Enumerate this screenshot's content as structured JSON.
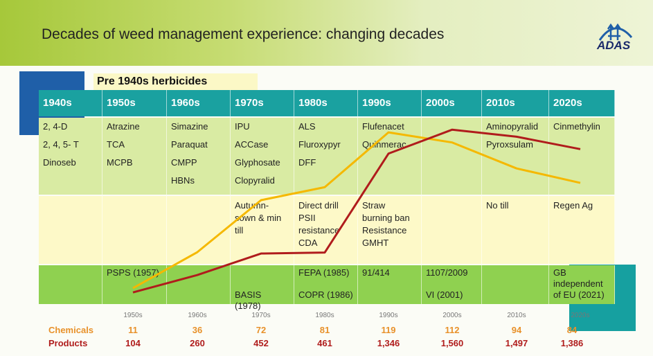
{
  "title": "Decades of weed management experience: changing decades",
  "logo": "ADAS",
  "pre_box": "Pre 1940s herbicides",
  "table": {
    "headers": [
      "1940s",
      "1950s",
      "1960s",
      "1970s",
      "1980s",
      "1990s",
      "2000s",
      "2010s",
      "2020s"
    ],
    "herbicides": [
      [
        "2, 4-D",
        "2, 4, 5- T",
        "Dinoseb"
      ],
      [
        "Atrazine",
        "TCA",
        "MCPB"
      ],
      [
        "Simazine",
        "Paraquat",
        "CMPP",
        "HBNs"
      ],
      [
        "IPU",
        "ACCase",
        "Glyphosate",
        "Clopyralid"
      ],
      [
        "ALS",
        "Fluroxypyr",
        "DFF"
      ],
      [
        "Flufenacet",
        "Quinmerac"
      ],
      [],
      [
        "Aminopyralid",
        "Pyroxsulam"
      ],
      [
        "Cinmethylin"
      ]
    ],
    "practices": [
      [],
      [],
      [],
      [
        "Autumn-sown & min till"
      ],
      [
        "Direct drill",
        "PSII resistance",
        "CDA"
      ],
      [
        "Straw burning ban",
        "Resistance",
        "GMHT"
      ],
      [],
      [
        "No till"
      ],
      [
        "Regen Ag"
      ]
    ],
    "regulation": [
      [],
      [
        "PSPS (1957)"
      ],
      [],
      [
        "",
        "",
        "BASIS (1978)"
      ],
      [
        "FEPA (1985)",
        "",
        "COPR (1986)"
      ],
      [
        "91/414"
      ],
      [
        "1107/2009",
        "",
        "VI (2001)"
      ],
      [],
      [
        "GB independent of EU (2021)"
      ]
    ]
  },
  "chart_data": {
    "type": "line",
    "categories": [
      "1950s",
      "1960s",
      "1970s",
      "1980s",
      "1990s",
      "2000s",
      "2010s",
      "2020s"
    ],
    "series": [
      {
        "name": "Chemicals",
        "color": "#f5b800",
        "label_color": "#e8912a",
        "values": [
          11,
          36,
          72,
          81,
          119,
          112,
          94,
          84
        ]
      },
      {
        "name": "Products",
        "color": "#b01c1c",
        "label_color": "#b01c1c",
        "values": [
          104,
          260,
          452,
          461,
          1346,
          1560,
          1497,
          1386
        ]
      }
    ],
    "value_labels": {
      "Chemicals": [
        "11",
        "36",
        "72",
        "81",
        "119",
        "112",
        "94",
        "84"
      ],
      "Products": [
        "104",
        "260",
        "452",
        "461",
        "1,346",
        "1,560",
        "1,497",
        "1,386"
      ]
    }
  }
}
